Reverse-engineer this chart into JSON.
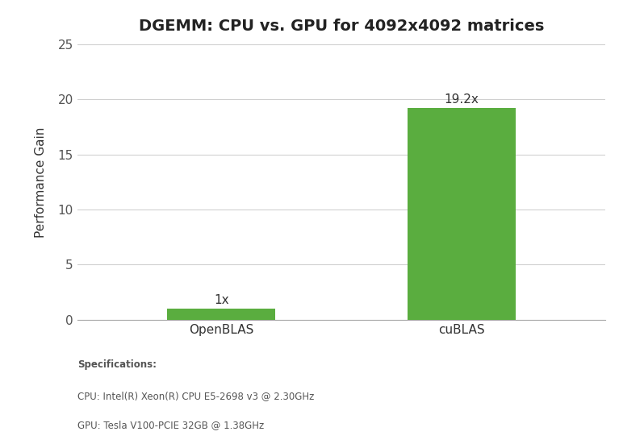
{
  "title": "DGEMM: CPU vs. GPU for 4092x4092 matrices",
  "categories": [
    "OpenBLAS",
    "cuBLAS"
  ],
  "values": [
    1,
    19.2
  ],
  "labels": [
    "1x",
    "19.2x"
  ],
  "bar_color": "#5aad3f",
  "ylabel": "Performance Gain",
  "ylim": [
    0,
    25
  ],
  "yticks": [
    0,
    5,
    10,
    15,
    20,
    25
  ],
  "background_color": "#ffffff",
  "title_fontsize": 14,
  "label_fontsize": 11,
  "tick_fontsize": 11,
  "bar_width": 0.45,
  "specs_bold": "Specifications:",
  "specs_line1": "CPU: Intel(R) Xeon(R) CPU E5-2698 v3 @ 2.30GHz",
  "specs_line2": "GPU: Tesla V100-PCIE 32GB @ 1.38GHz"
}
